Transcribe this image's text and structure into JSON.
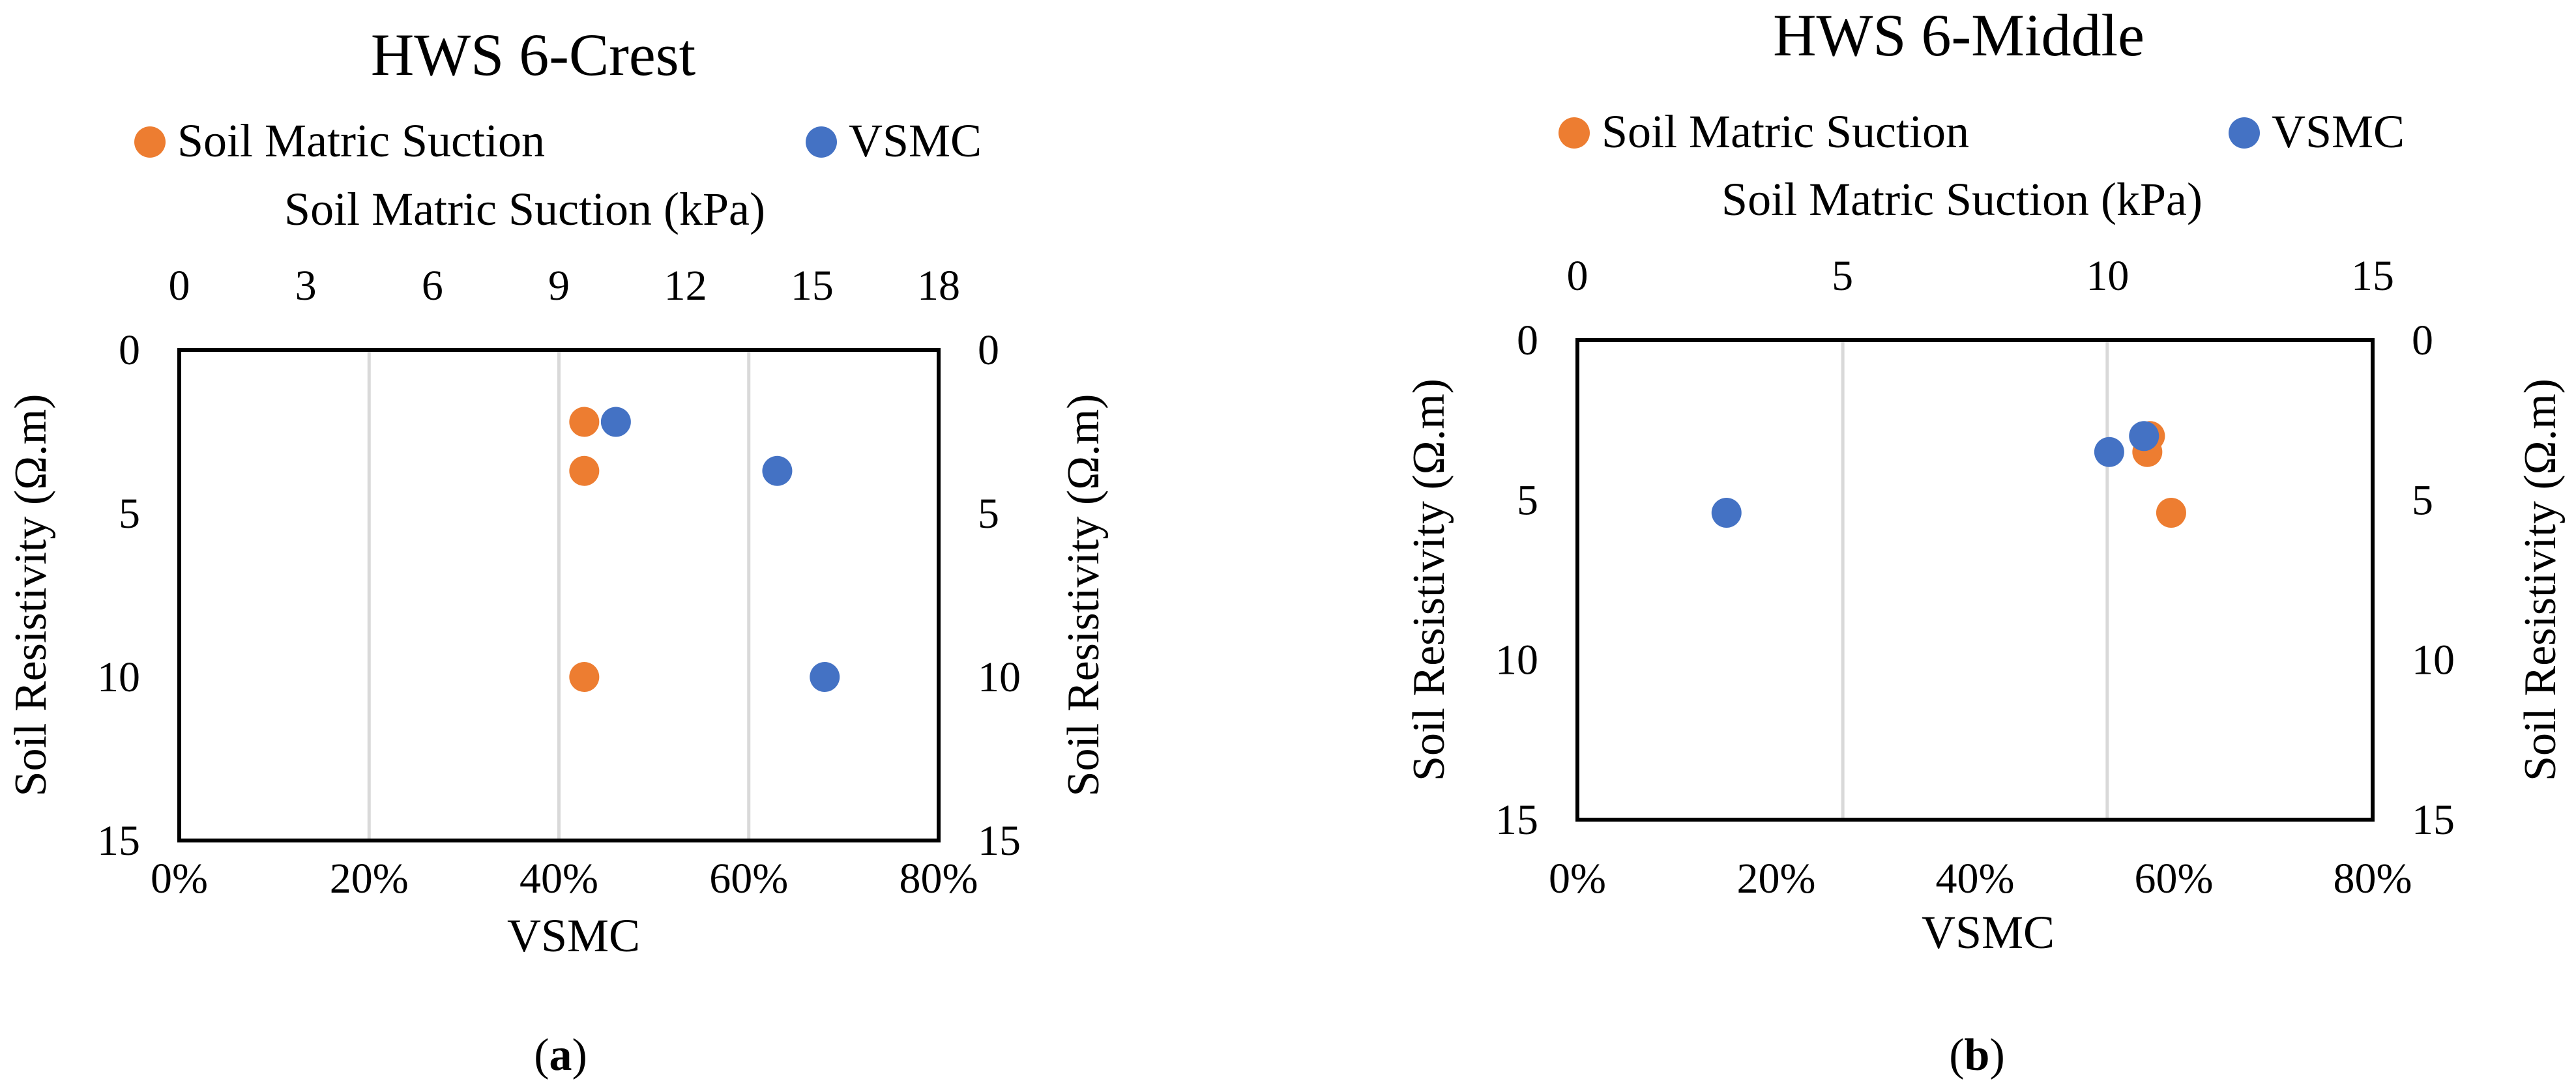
{
  "colors": {
    "suction": "#ED7D31",
    "vsmc": "#4472C4",
    "grid": "#D9D9D9",
    "frame": "#000000"
  },
  "chart_data": [
    {
      "type": "scatter",
      "panel_label": "a",
      "title": "HWS 6-Crest",
      "legend": [
        {
          "name": "Soil Matric Suction",
          "color": "#ED7D31"
        },
        {
          "name": "VSMC",
          "color": "#4472C4"
        }
      ],
      "top_axis": {
        "label": "Soil Matric Suction (kPa)",
        "min": 0,
        "max": 18,
        "ticks": [
          "0",
          "3",
          "6",
          "9",
          "12",
          "15",
          "18"
        ]
      },
      "bottom_axis": {
        "label": "VSMC",
        "min": 0,
        "max": 0.8,
        "ticks": [
          "0%",
          "20%",
          "40%",
          "60%",
          "80%"
        ],
        "gridlines": [
          0.2,
          0.4,
          0.6
        ]
      },
      "left_axis": {
        "label": "Soil Resistivity (Ω.m)",
        "min": 0,
        "max": 15,
        "reversed": true,
        "ticks": [
          "0",
          "5",
          "10",
          "15"
        ]
      },
      "right_axis": {
        "label": "Soil Resistivity (Ω.m)",
        "min": 0,
        "max": 15,
        "reversed": true,
        "ticks": [
          "0",
          "5",
          "10",
          "15"
        ]
      },
      "series": [
        {
          "name": "Soil Matric Suction",
          "axis": "top",
          "color": "#ED7D31",
          "points": [
            {
              "x": 9.6,
              "y": 2.2
            },
            {
              "x": 9.6,
              "y": 3.7
            },
            {
              "x": 9.6,
              "y": 10.0
            }
          ]
        },
        {
          "name": "VSMC",
          "axis": "bottom",
          "color": "#4472C4",
          "points": [
            {
              "x": 0.46,
              "y": 2.2
            },
            {
              "x": 0.63,
              "y": 3.7
            },
            {
              "x": 0.68,
              "y": 10.0
            }
          ]
        }
      ]
    },
    {
      "type": "scatter",
      "panel_label": "b",
      "title": "HWS 6-Middle",
      "legend": [
        {
          "name": "Soil Matric Suction",
          "color": "#ED7D31"
        },
        {
          "name": "VSMC",
          "color": "#4472C4"
        }
      ],
      "top_axis": {
        "label": "Soil Matric Suction (kPa)",
        "min": 0,
        "max": 15,
        "ticks": [
          "0",
          "5",
          "10",
          "15"
        ]
      },
      "bottom_axis": {
        "label": "VSMC",
        "min": 0,
        "max": 0.8,
        "ticks": [
          "0%",
          "20%",
          "40%",
          "60%",
          "80%"
        ],
        "gridlines": [
          0.267,
          0.533
        ]
      },
      "left_axis": {
        "label": "Soil Resistivity (Ω.m)",
        "min": 0,
        "max": 15,
        "reversed": true,
        "ticks": [
          "0",
          "5",
          "10",
          "15"
        ]
      },
      "right_axis": {
        "label": "Soil Resistivity (Ω.m)",
        "min": 0,
        "max": 15,
        "reversed": true,
        "ticks": [
          "0",
          "5",
          "10",
          "15"
        ]
      },
      "series": [
        {
          "name": "Soil Matric Suction",
          "axis": "top",
          "color": "#ED7D31",
          "points": [
            {
              "x": 10.8,
              "y": 3.0
            },
            {
              "x": 10.75,
              "y": 3.5
            },
            {
              "x": 11.2,
              "y": 5.4
            }
          ]
        },
        {
          "name": "VSMC",
          "axis": "bottom",
          "color": "#4472C4",
          "points": [
            {
              "x": 0.57,
              "y": 3.0
            },
            {
              "x": 0.535,
              "y": 3.5
            },
            {
              "x": 0.15,
              "y": 5.4
            }
          ]
        }
      ]
    }
  ]
}
